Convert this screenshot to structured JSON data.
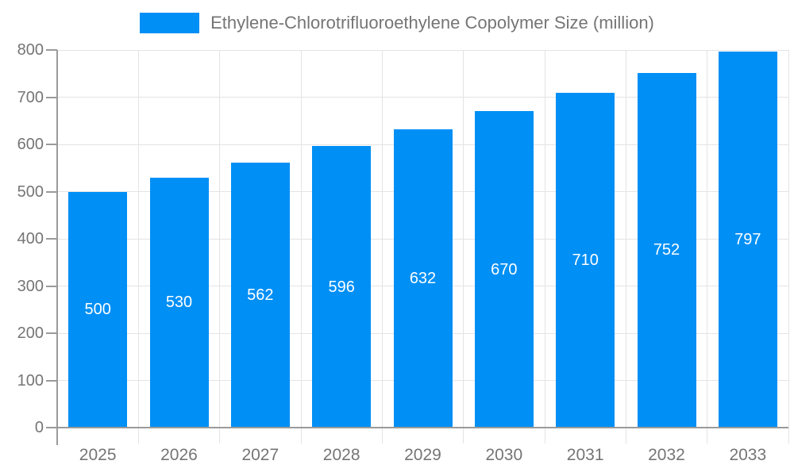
{
  "legend": {
    "label": "Ethylene-Chlorotrifluoroethylene Copolymer Size (million)"
  },
  "colors": {
    "bar": "#008FF5",
    "grid": "#e4e4e4",
    "axis": "#9a9a9a",
    "tick_label": "#757575",
    "value_label": "#ffffff",
    "background": "#ffffff"
  },
  "chart_data": {
    "type": "bar",
    "title": "Ethylene-Chlorotrifluoroethylene Copolymer Size (million)",
    "categories": [
      "2025",
      "2026",
      "2027",
      "2028",
      "2029",
      "2030",
      "2031",
      "2032",
      "2033"
    ],
    "values": [
      500,
      530,
      562,
      596,
      632,
      670,
      710,
      752,
      797
    ],
    "series": [
      {
        "name": "Ethylene-Chlorotrifluoroethylene Copolymer Size (million)",
        "values": [
          500,
          530,
          562,
          596,
          632,
          670,
          710,
          752,
          797
        ]
      }
    ],
    "xlabel": "",
    "ylabel": "",
    "ylim": [
      0,
      800
    ],
    "yticks": [
      0,
      100,
      200,
      300,
      400,
      500,
      600,
      700,
      800
    ],
    "grid": true,
    "legend_position": "top",
    "value_labels": "inside-center"
  }
}
